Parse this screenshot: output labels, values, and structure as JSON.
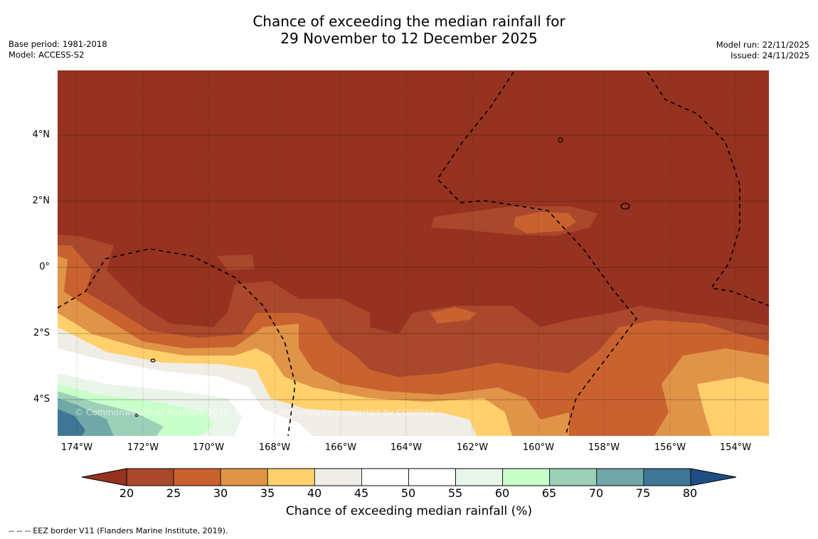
{
  "title": {
    "line1": "Chance of exceeding the median rainfall for",
    "line2": "29 November to 12 December 2025"
  },
  "meta_left": {
    "base_period": "Base period: 1981-2018",
    "model": "Model: ACCESS-S2"
  },
  "meta_right": {
    "model_run": "Model run: 22/11/2025",
    "issued": "Issued: 24/11/2025"
  },
  "map": {
    "watermark": "© Commonwealth of Australia 2025, Bureau of Meteorology, supported by COSPPac",
    "lat_labels": [
      "4°N",
      "2°N",
      "0°",
      "2°S",
      "4°S"
    ],
    "lon_labels": [
      "174°W",
      "172°W",
      "170°W",
      "168°W",
      "166°W",
      "164°W",
      "162°W",
      "160°W",
      "158°W",
      "156°W",
      "154°W"
    ],
    "background_color": "#963220"
  },
  "colorbar": {
    "label": "Chance of exceeding median rainfall (%)",
    "ticks": [
      "20",
      "25",
      "30",
      "35",
      "40",
      "45",
      "50",
      "55",
      "60",
      "65",
      "70",
      "75",
      "80"
    ],
    "under_color": "#963220",
    "over_color": "#1f4e84",
    "colors": [
      "#a9482c",
      "#c9622f",
      "#e09448",
      "#ffd06b",
      "#f0ece6",
      "#ffffff",
      "#ffffff",
      "#eaf5ea",
      "#c9ffc9",
      "#9dd0b9",
      "#70a8a8",
      "#3f7696"
    ]
  },
  "footer": "--  --  -- EEZ border V11 (Flanders Marine Institute, 2019)."
}
